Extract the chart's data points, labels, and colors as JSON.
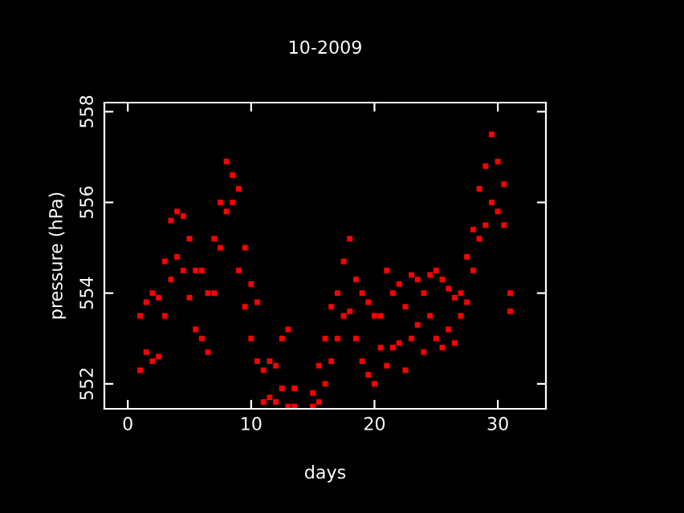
{
  "chart_data": {
    "type": "scatter",
    "title": "10-2009",
    "xlabel": "days",
    "ylabel": "pressure (hPa)",
    "xlim": [
      -1.9,
      33.9
    ],
    "ylim": [
      551.45,
      558.2
    ],
    "xticks": [
      0,
      10,
      20,
      30
    ],
    "yticks": [
      552,
      554,
      556,
      558
    ],
    "marker": "square",
    "series": [
      {
        "color": "#ff0000",
        "x": [
          1,
          1,
          1.5,
          1.5,
          2,
          2,
          2.5,
          2.5,
          3,
          3,
          3.5,
          3.5,
          4,
          4,
          4.5,
          4.5,
          5,
          5,
          5.5,
          5.5,
          6,
          6,
          6.5,
          6.5,
          7,
          7,
          7.5,
          7.5,
          8,
          8,
          8.5,
          8.5,
          9,
          9,
          9.5,
          9.5,
          10,
          10,
          10.5,
          10.5,
          11,
          11,
          11.5,
          11.5,
          12,
          12,
          12.5,
          12.5,
          13,
          13,
          13.5,
          13.5,
          15,
          15,
          15.5,
          15.5,
          16,
          16,
          16.5,
          16.5,
          17,
          17,
          17.5,
          17.5,
          18,
          18,
          18.5,
          18.5,
          19,
          19,
          19.5,
          19.5,
          20,
          20,
          20.5,
          20.5,
          21,
          21,
          21.5,
          21.5,
          22,
          22,
          22.5,
          22.5,
          23,
          23,
          23.5,
          23.5,
          24,
          24,
          24.5,
          24.5,
          25,
          25,
          25.5,
          25.5,
          26,
          26,
          26.5,
          26.5,
          27,
          27,
          27.5,
          27.5,
          28,
          28,
          28.5,
          28.5,
          29,
          29,
          29.5,
          29.5,
          30,
          30,
          30.5,
          30.5,
          31,
          31
        ],
        "values": [
          552.3,
          553.5,
          552.7,
          553.8,
          552.5,
          554,
          552.6,
          553.9,
          553.5,
          554.7,
          554.3,
          555.6,
          554.8,
          555.8,
          554.5,
          555.7,
          553.9,
          555.2,
          553.2,
          554.5,
          553,
          554.5,
          552.7,
          554,
          554,
          555.2,
          555,
          556,
          555.8,
          556.9,
          556,
          556.6,
          554.5,
          556.3,
          553.7,
          555,
          553,
          554.2,
          552.5,
          553.8,
          551.6,
          552.3,
          551.7,
          552.5,
          551.6,
          552.4,
          551.9,
          553,
          551.5,
          553.2,
          551.5,
          551.9,
          551.5,
          551.8,
          551.6,
          552.4,
          552,
          553,
          552.5,
          553.7,
          553,
          554,
          553.5,
          554.7,
          553.6,
          555.2,
          553,
          554.3,
          552.5,
          554,
          552.2,
          553.8,
          552,
          553.5,
          552.8,
          553.5,
          552.4,
          554.5,
          552.8,
          554,
          552.9,
          554.2,
          552.3,
          553.7,
          553,
          554.4,
          553.3,
          554.3,
          552.7,
          554,
          553.5,
          554.4,
          553,
          554.5,
          552.8,
          554.3,
          553.2,
          554.1,
          552.9,
          553.9,
          553.5,
          554,
          553.8,
          554.8,
          554.5,
          555.4,
          555.2,
          556.3,
          555.5,
          556.8,
          556,
          557.5,
          555.8,
          556.9,
          555.5,
          556.4,
          553.6,
          554
        ]
      }
    ]
  }
}
